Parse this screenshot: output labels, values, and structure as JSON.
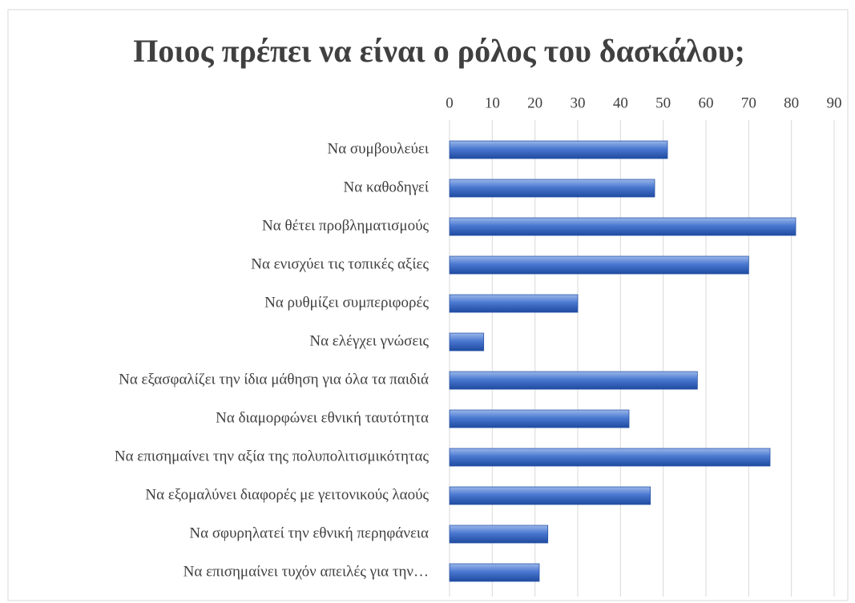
{
  "chart_data": {
    "type": "bar",
    "orientation": "horizontal",
    "title": "Ποιος πρέπει να είναι ο ρόλος του δασκάλου;",
    "categories": [
      "Να συμβουλεύει",
      "Να καθοδηγεί",
      "Να θέτει προβληματισμούς",
      "Να ενισχύει τις τοπικές αξίες",
      "Να ρυθμίζει συμπεριφορές",
      "Να ελέγχει γνώσεις",
      "Να εξασφαλίζει την ίδια μάθηση για όλα τα παιδιά",
      "Να διαμορφώνει εθνική ταυτότητα",
      "Να επισημαίνει την αξία της πολυπολιτισμικότητας",
      "Να εξομαλύνει διαφορές με γειτονικούς λαούς",
      "Να σφυρηλατεί την εθνική περηφάνεια",
      "Να επισημαίνει τυχόν απειλές για την…"
    ],
    "values": [
      51,
      48,
      81,
      70,
      30,
      8,
      58,
      42,
      75,
      47,
      23,
      21
    ],
    "color": "#4472c4",
    "xlim": [
      0,
      90
    ],
    "xticks": [
      0,
      10,
      20,
      30,
      40,
      50,
      60,
      70,
      80,
      90
    ],
    "grid": true
  }
}
